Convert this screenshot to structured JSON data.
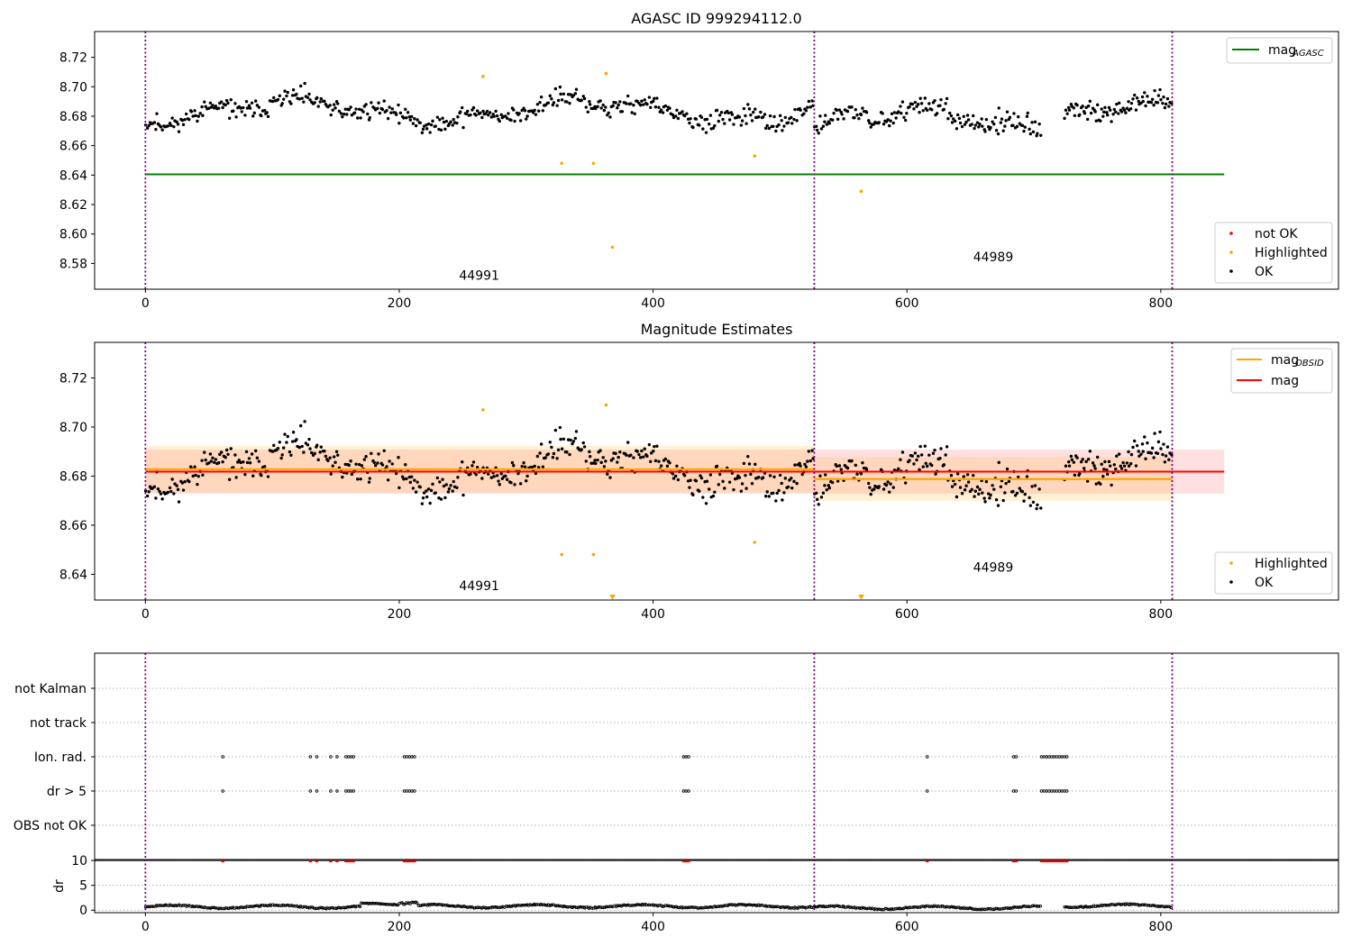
{
  "chart_data": [
    {
      "type": "scatter",
      "title": "AGASC ID 999294112.0",
      "xlim": [
        -40,
        940
      ],
      "ylim": [
        8.5625,
        8.7375
      ],
      "yticks": [
        8.58,
        8.6,
        8.62,
        8.64,
        8.66,
        8.68,
        8.7,
        8.72
      ],
      "xticks": [
        0,
        200,
        400,
        600,
        800
      ],
      "vlines": [
        0,
        527,
        809
      ],
      "hline": {
        "name": "mag",
        "sub": "AGASC",
        "y": 8.6405,
        "x_range": [
          0,
          850
        ],
        "color": "#008000"
      },
      "obsid_labels": [
        {
          "text": "44991",
          "x": 263,
          "y": 8.569
        },
        {
          "text": "44989",
          "x": 668,
          "y": 8.5815
        }
      ],
      "legend_lines": [
        {
          "name": "mag",
          "sub": "AGASC",
          "color": "#008000"
        }
      ],
      "legend_markers": [
        {
          "name": "not OK",
          "color": "#ff0000"
        },
        {
          "name": "Highlighted",
          "color": "#ffa500"
        },
        {
          "name": "OK",
          "color": "#000000"
        }
      ],
      "highlighted": [
        [
          266,
          8.707
        ],
        [
          363,
          8.709
        ],
        [
          328,
          8.648
        ],
        [
          353,
          8.648
        ],
        [
          480,
          8.653
        ],
        [
          368,
          8.591
        ],
        [
          564,
          8.629
        ]
      ],
      "series_ok": [
        {
          "name": "OK",
          "x_range": [
            0,
            527
          ],
          "center": 8.6835,
          "amplitude": 0.018,
          "fine_wiggle": 0.006,
          "count": 480,
          "seed": 11
        },
        {
          "name": "OK",
          "x_range": [
            527,
            706
          ],
          "center": 8.6765,
          "amplitude": 0.022,
          "fine_wiggle": 0.007,
          "count": 165,
          "seed": 23
        },
        {
          "name": "OK",
          "x_range": [
            724,
            809
          ],
          "center": 8.6805,
          "amplitude": 0.02,
          "fine_wiggle": 0.006,
          "count": 85,
          "seed": 37
        }
      ]
    },
    {
      "type": "scatter",
      "title": "Magnitude Estimates",
      "xlim": [
        -40,
        940
      ],
      "ylim": [
        8.6295,
        8.7345
      ],
      "yticks": [
        8.64,
        8.66,
        8.68,
        8.7,
        8.72
      ],
      "xticks": [
        0,
        200,
        400,
        600,
        800
      ],
      "vlines": [
        0,
        527,
        809
      ],
      "mag_line": {
        "name": "mag",
        "y": 8.6818,
        "band": [
          8.6728,
          8.6908
        ],
        "x_range": [
          0,
          850
        ],
        "color": "#ff0000"
      },
      "obsid_mags": [
        {
          "x_range": [
            0,
            527
          ],
          "y": 8.6828,
          "band": [
            8.6733,
            8.6923
          ]
        },
        {
          "x_range": [
            527,
            809
          ],
          "y": 8.6788,
          "band": [
            8.6698,
            8.6878
          ]
        }
      ],
      "obsid_labels": [
        {
          "text": "44991",
          "x": 263,
          "y": 8.6335
        },
        {
          "text": "44989",
          "x": 668,
          "y": 8.641
        }
      ],
      "legend_lines": [
        {
          "name": "mag",
          "sub": "OBSID",
          "color": "#ffa500"
        },
        {
          "name": "mag",
          "sub": "",
          "color": "#ff0000"
        }
      ],
      "legend_markers": [
        {
          "name": "Highlighted",
          "color": "#ffa500"
        },
        {
          "name": "OK",
          "color": "#000000"
        }
      ],
      "highlighted": [
        [
          266,
          8.707
        ],
        [
          363,
          8.709
        ],
        [
          328,
          8.648
        ],
        [
          353,
          8.648
        ],
        [
          480,
          8.653
        ]
      ],
      "off_scale_markers": [
        [
          368,
          8.6295
        ],
        [
          564,
          8.6295
        ]
      ]
    },
    {
      "type": "scatter",
      "xlim": [
        -40,
        940
      ],
      "xticks": [
        0,
        200,
        400,
        600,
        800
      ],
      "vlines": [
        0,
        527,
        809
      ],
      "flag_rows": [
        "not Kalman",
        "not track",
        "Ion. rad.",
        "dr > 5",
        "OBS not OK"
      ],
      "flag_points": {
        "Ion. rad.": [
          61,
          130,
          135,
          146,
          151,
          158,
          160,
          162,
          164,
          204,
          206,
          208,
          210,
          212,
          424,
          426,
          428,
          616,
          684,
          686,
          706,
          708,
          710,
          712,
          714,
          716,
          718,
          720,
          722,
          724,
          726
        ],
        "dr > 5": [
          61,
          130,
          135,
          146,
          151,
          158,
          160,
          162,
          164,
          204,
          206,
          208,
          210,
          212,
          424,
          426,
          428,
          616,
          684,
          686,
          706,
          708,
          710,
          712,
          714,
          716,
          718,
          720,
          722,
          724,
          726
        ]
      },
      "dr_axis": {
        "ylabel": "dr",
        "ylim": [
          -0.5,
          10.2
        ],
        "yticks": [
          0,
          5,
          10
        ],
        "threshold": 10,
        "markers_x": [
          61,
          130,
          135,
          146,
          151,
          158,
          160,
          162,
          164,
          204,
          206,
          208,
          210,
          212,
          424,
          426,
          428,
          616,
          684,
          686,
          706,
          708,
          710,
          712,
          714,
          716,
          718,
          720,
          722,
          724,
          726
        ],
        "segments": [
          {
            "x_range": [
              0,
              170
            ],
            "center": 0.7,
            "amplitude": 0.5
          },
          {
            "x_range": [
              170,
              200
            ],
            "center": 1.2,
            "amplitude": 0.3
          },
          {
            "x_range": [
              200,
              215
            ],
            "center": 1.8,
            "amplitude": 0.8
          },
          {
            "x_range": [
              215,
              527
            ],
            "center": 0.8,
            "amplitude": 0.5
          },
          {
            "x_range": [
              527,
              706
            ],
            "center": 0.5,
            "amplitude": 0.5
          },
          {
            "x_range": [
              724,
              809
            ],
            "center": 0.9,
            "amplitude": 0.5
          }
        ]
      }
    }
  ]
}
